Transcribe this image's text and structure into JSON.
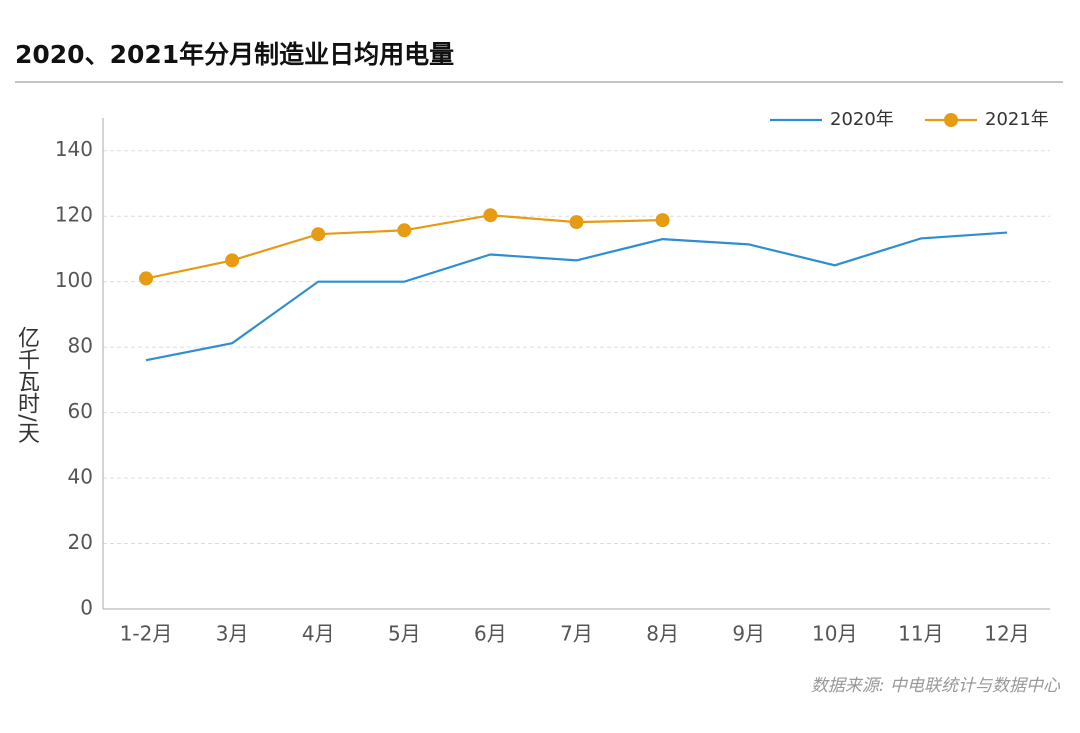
{
  "chart_data": {
    "type": "line",
    "title": "2020、2021年分月制造业日均用电量",
    "ylabel": "亿千瓦时/天",
    "source": "数据来源: 中电联统计与数据中心",
    "categories": [
      "1-2月",
      "3月",
      "4月",
      "5月",
      "6月",
      "7月",
      "8月",
      "9月",
      "10月",
      "11月",
      "12月"
    ],
    "series": [
      {
        "name": "2020年",
        "color": "#2e8fd0",
        "marker": false,
        "values": [
          76,
          81.2,
          100,
          100,
          108.3,
          106.5,
          113,
          111.4,
          105,
          113.2,
          115
        ]
      },
      {
        "name": "2021年",
        "color": "#e69b12",
        "marker": true,
        "values": [
          101,
          106.5,
          114.5,
          115.7,
          120.3,
          118.2,
          118.8,
          null,
          null,
          null,
          null
        ]
      }
    ],
    "ylim": [
      0,
      150
    ],
    "yticks": [
      0,
      20,
      40,
      60,
      80,
      100,
      120,
      140
    ],
    "grid": true,
    "legend": "top-right"
  }
}
